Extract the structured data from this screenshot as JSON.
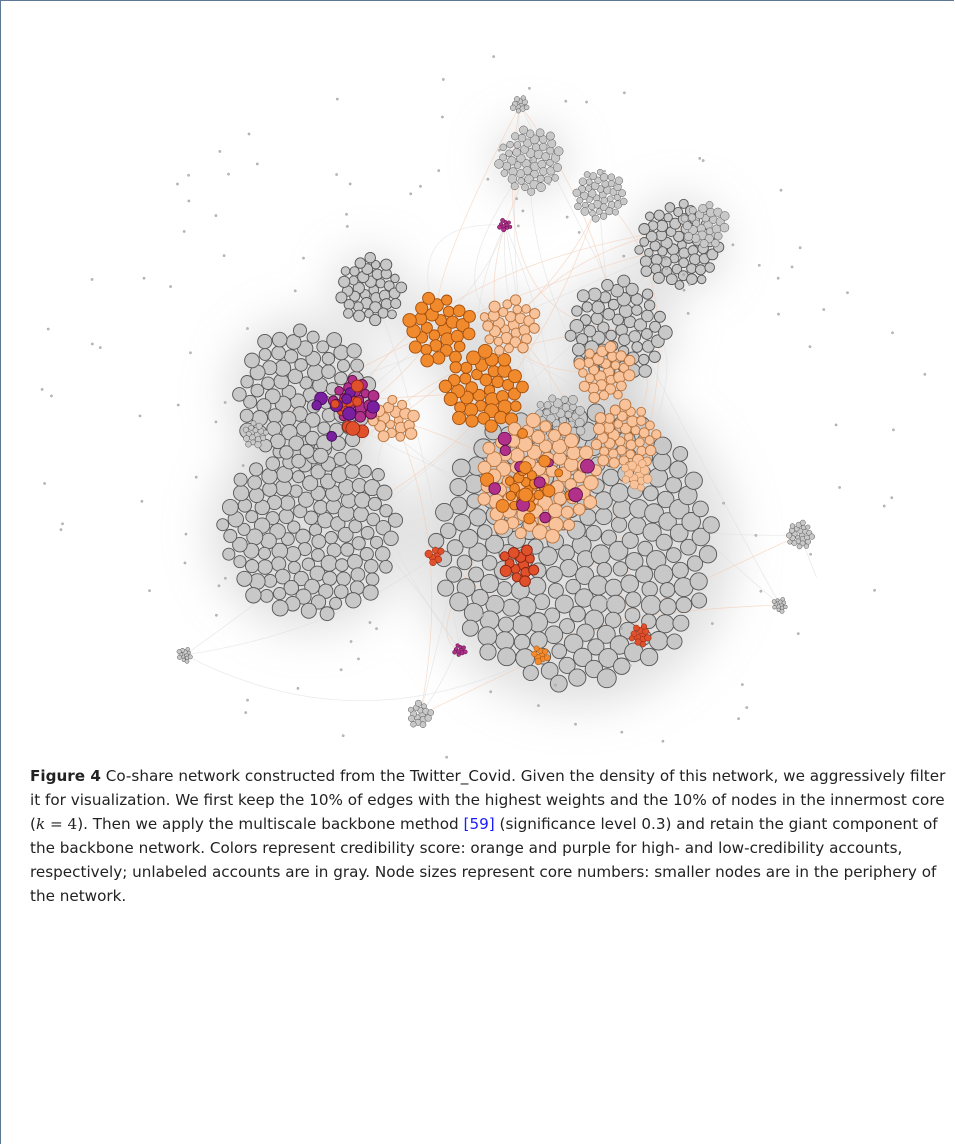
{
  "figure": {
    "caption": {
      "label": "Figure 4",
      "text_before": "Co-share network constructed from the Twitter_Covid. Given the density of this network, we aggressively filter it for visualization. We first keep the 10% of edges with the highest weights and the 10% of nodes in the innermost core (",
      "math": "k = 4",
      "text_mid": "). Then we apply the multiscale backbone method ",
      "citation": "[59]",
      "text_after": " (significance level 0.3) and retain the giant component of the backbone network. Colors represent credibility score: orange and purple for high- and low-credibility accounts, respectively; unlabeled accounts are in gray. Node sizes represent core numbers: smaller nodes are in the periphery of the network."
    }
  }
}
